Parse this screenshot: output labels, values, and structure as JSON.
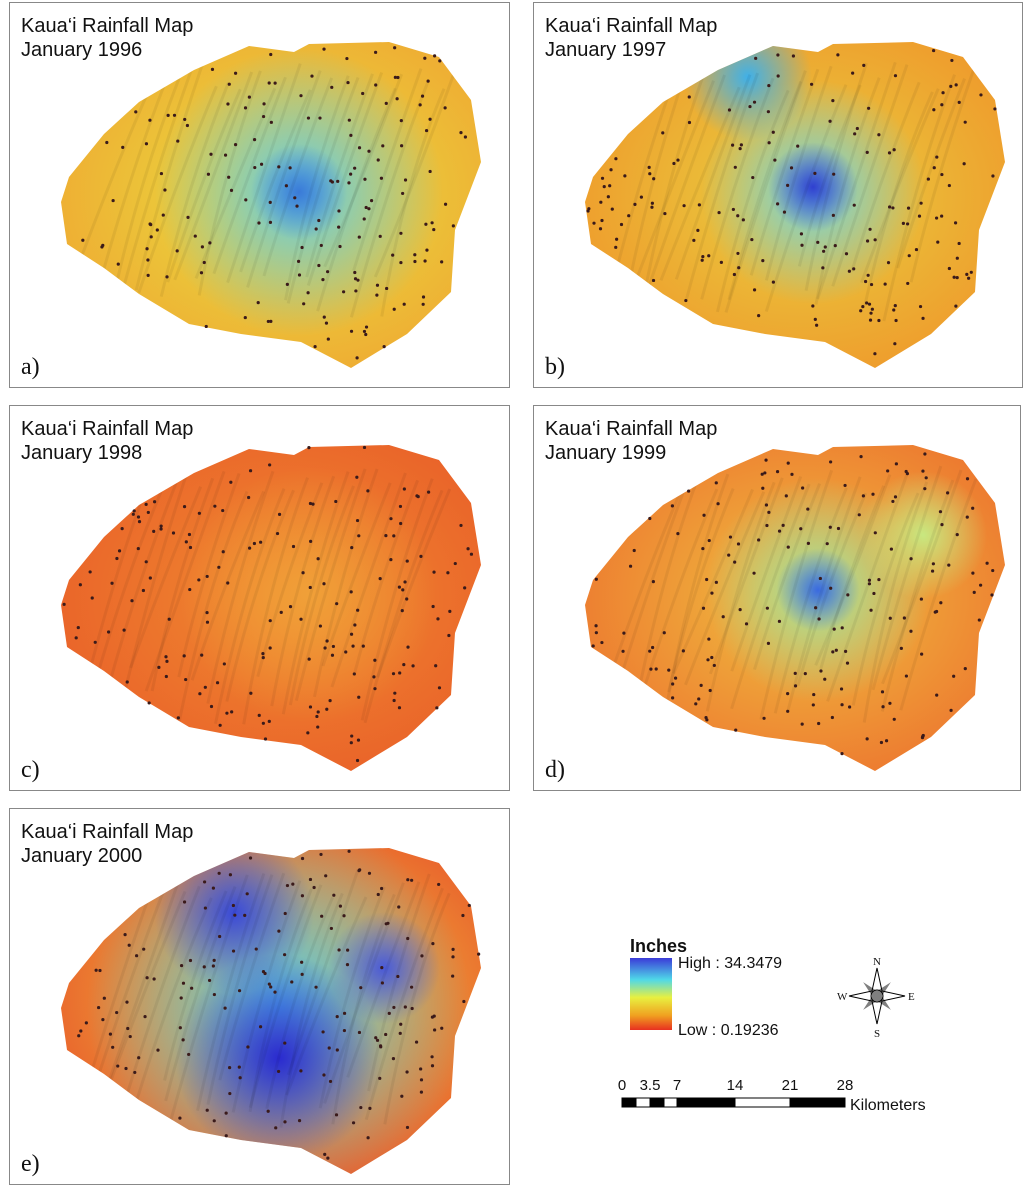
{
  "panels": [
    {
      "title": "Kaua‘i Rainfall Map",
      "date": "January 1996",
      "label": "a)"
    },
    {
      "title": "Kaua‘i Rainfall Map",
      "date": "January 1997",
      "label": "b)"
    },
    {
      "title": "Kaua‘i Rainfall Map",
      "date": "January 1998",
      "label": "c)"
    },
    {
      "title": "Kaua‘i Rainfall Map",
      "date": "January 1999",
      "label": "d)"
    },
    {
      "title": "Kaua‘i Rainfall Map",
      "date": "January 2000",
      "label": "e)"
    }
  ],
  "legend": {
    "title": "Inches",
    "high": "High : 34.3479",
    "low": "Low : 0.19236"
  },
  "compass": {
    "n": "N",
    "s": "S",
    "e": "E",
    "w": "W"
  },
  "scale_bar": {
    "ticks": [
      "0",
      "3.5",
      "7",
      "14",
      "21",
      "28"
    ],
    "unit": "Kilometers"
  }
}
